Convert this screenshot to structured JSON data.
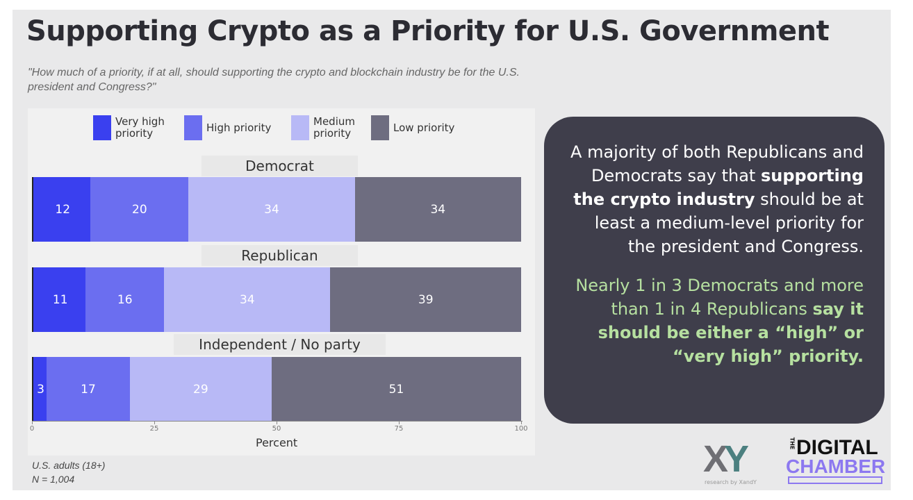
{
  "title": "Supporting Crypto as a Priority for U.S. Government",
  "subtitle": "\"How much of a priority, if at all, should supporting the crypto and blockchain industry be for the U.S. president and Congress?\"",
  "chart_data": {
    "type": "bar",
    "orientation": "horizontal-stacked",
    "xlabel": "Percent",
    "xlim": [
      0,
      100
    ],
    "xticks": [
      "0",
      "25",
      "50",
      "75",
      "100"
    ],
    "legend": [
      "Very high priority",
      "High priority",
      "Medium priority",
      "Low priority"
    ],
    "colors": [
      "#3a40ef",
      "#6b6ef0",
      "#b8b9f6",
      "#6e6d80"
    ],
    "categories": [
      "Democrat",
      "Republican",
      "Independent / No party"
    ],
    "series": [
      {
        "name": "Very high priority",
        "values": [
          12,
          11,
          3
        ]
      },
      {
        "name": "High priority",
        "values": [
          20,
          16,
          17
        ]
      },
      {
        "name": "Medium priority",
        "values": [
          34,
          34,
          29
        ]
      },
      {
        "name": "Low priority",
        "values": [
          34,
          39,
          51
        ]
      }
    ]
  },
  "legend_labels": {
    "very_high": "Very high\npriority",
    "high": "High priority",
    "medium": "Medium\npriority",
    "low": "Low priority"
  },
  "footnote": {
    "pop": "U.S. adults (18+)",
    "n": "N = 1,004"
  },
  "callout": {
    "p1a": "A majority of both Republicans and Democrats say that ",
    "p1b": "supporting the crypto industry",
    "p1c": " should be at least a medium-level priority for the president and Congress.",
    "p2a": "Nearly 1 in 3 Democrats and more than 1 in 4 Republicans ",
    "p2b": "say it should be either a “high” or “very high” priority."
  },
  "logos": {
    "xy": "XY",
    "xy_sub": "research by XandY",
    "dc_the": "THE",
    "dc_digital": "DIGITAL",
    "dc_chamber": "CHAMBER"
  }
}
